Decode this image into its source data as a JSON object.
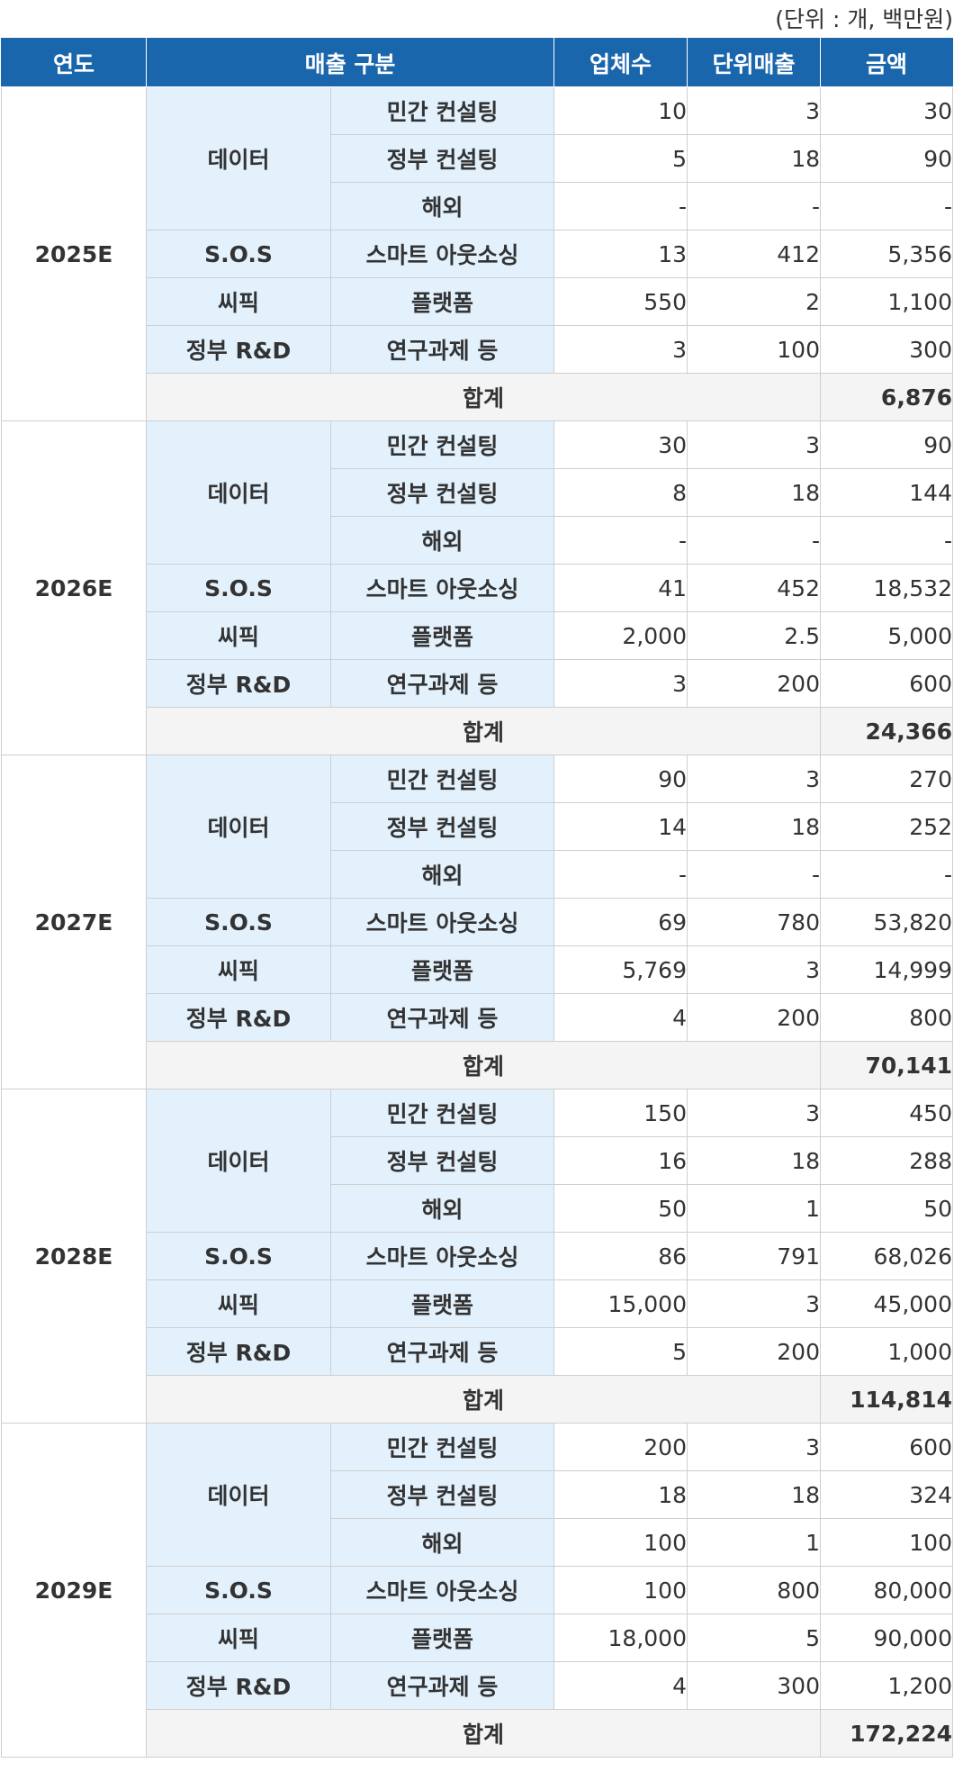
{
  "unit_note": "(단위 : 개, 백만원)",
  "header": {
    "year": "연도",
    "category": "매출 구분",
    "companies": "업체수",
    "unit_sales": "단위매출",
    "amount": "금액"
  },
  "labels": {
    "data": "데이터",
    "private_consulting": "민간 컨설팅",
    "gov_consulting": "정부 컨설팅",
    "overseas": "해외",
    "sos": "S.O.S",
    "smart_outsourcing": "스마트 아웃소싱",
    "ssipik": "씨픽",
    "platform": "플랫폼",
    "gov_rnd": "정부 R&D",
    "research": "연구과제 등",
    "total": "합계"
  },
  "years": [
    {
      "year": "2025E",
      "rows": [
        {
          "companies": "10",
          "unit": "3",
          "amount": "30"
        },
        {
          "companies": "5",
          "unit": "18",
          "amount": "90"
        },
        {
          "companies": "-",
          "unit": "-",
          "amount": "-"
        },
        {
          "companies": "13",
          "unit": "412",
          "amount": "5,356"
        },
        {
          "companies": "550",
          "unit": "2",
          "amount": "1,100"
        },
        {
          "companies": "3",
          "unit": "100",
          "amount": "300"
        }
      ],
      "total": "6,876"
    },
    {
      "year": "2026E",
      "rows": [
        {
          "companies": "30",
          "unit": "3",
          "amount": "90"
        },
        {
          "companies": "8",
          "unit": "18",
          "amount": "144"
        },
        {
          "companies": "-",
          "unit": "-",
          "amount": "-"
        },
        {
          "companies": "41",
          "unit": "452",
          "amount": "18,532"
        },
        {
          "companies": "2,000",
          "unit": "2.5",
          "amount": "5,000"
        },
        {
          "companies": "3",
          "unit": "200",
          "amount": "600"
        }
      ],
      "total": "24,366"
    },
    {
      "year": "2027E",
      "rows": [
        {
          "companies": "90",
          "unit": "3",
          "amount": "270"
        },
        {
          "companies": "14",
          "unit": "18",
          "amount": "252"
        },
        {
          "companies": "-",
          "unit": "-",
          "amount": "-"
        },
        {
          "companies": "69",
          "unit": "780",
          "amount": "53,820"
        },
        {
          "companies": "5,769",
          "unit": "3",
          "amount": "14,999"
        },
        {
          "companies": "4",
          "unit": "200",
          "amount": "800"
        }
      ],
      "total": "70,141"
    },
    {
      "year": "2028E",
      "rows": [
        {
          "companies": "150",
          "unit": "3",
          "amount": "450"
        },
        {
          "companies": "16",
          "unit": "18",
          "amount": "288"
        },
        {
          "companies": "50",
          "unit": "1",
          "amount": "50"
        },
        {
          "companies": "86",
          "unit": "791",
          "amount": "68,026"
        },
        {
          "companies": "15,000",
          "unit": "3",
          "amount": "45,000"
        },
        {
          "companies": "5",
          "unit": "200",
          "amount": "1,000"
        }
      ],
      "total": "114,814"
    },
    {
      "year": "2029E",
      "rows": [
        {
          "companies": "200",
          "unit": "3",
          "amount": "600"
        },
        {
          "companies": "18",
          "unit": "18",
          "amount": "324"
        },
        {
          "companies": "100",
          "unit": "1",
          "amount": "100"
        },
        {
          "companies": "100",
          "unit": "800",
          "amount": "80,000"
        },
        {
          "companies": "18,000",
          "unit": "5",
          "amount": "90,000"
        },
        {
          "companies": "4",
          "unit": "300",
          "amount": "1,200"
        }
      ],
      "total": "172,224"
    }
  ],
  "colors": {
    "header_bg": "#1a66ad",
    "category_bg": "#e3f1fc",
    "total_bg": "#f4f4f4",
    "border": "#cfcfcf"
  }
}
